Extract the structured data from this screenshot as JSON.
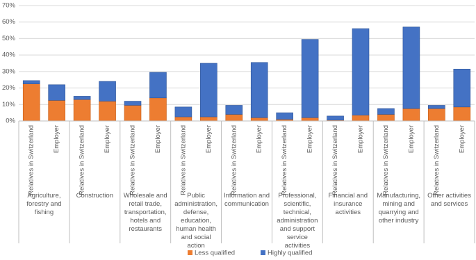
{
  "chart_data": {
    "type": "bar",
    "stacked": true,
    "groups": [
      "Agriculture, forestry and fishing",
      "Construction",
      "Wholesale and retail trade, transportation, hotels and restaurants",
      "Public administration, defense, education, human health and social action",
      "Information and communication",
      "Professional, scientific, technical, administration and support service activities",
      "Financial and insurance activities",
      "Manufacturing, mining and quarrying and other industry",
      "Other activities and services"
    ],
    "categories": [
      "Relatives in Switzerland",
      "Employer",
      "Relatives in Switzerland",
      "Employer",
      "Relatives in Switzerland",
      "Employer",
      "Relatives in Switzerland",
      "Employer",
      "Relatives in Switzerland",
      "Employer",
      "Relatives in Switzerland",
      "Employer",
      "Relatives in Switzerland",
      "Employer",
      "Relatives in Switzerland",
      "Employer",
      "Relatives in Switzerland",
      "Employer"
    ],
    "series": [
      {
        "name": "Less qualified",
        "color": "#ed7d31",
        "values": [
          22.5,
          12.5,
          13,
          12,
          9.5,
          14,
          2.5,
          2.5,
          4,
          2,
          1,
          2,
          0.5,
          3.5,
          4,
          7.5,
          7.5,
          8.5
        ]
      },
      {
        "name": "Highly qualified",
        "color": "#4472c4",
        "values": [
          2,
          9.5,
          2,
          12,
          2.5,
          15.5,
          6,
          32.5,
          5.5,
          33.5,
          4,
          47.5,
          2.5,
          52.5,
          3.5,
          49.5,
          2,
          23
        ]
      }
    ],
    "ylim": [
      0,
      70
    ],
    "yticks": [
      {
        "value": 0,
        "label": "0%"
      },
      {
        "value": 10,
        "label": "10%"
      },
      {
        "value": 20,
        "label": "20%"
      },
      {
        "value": 30,
        "label": "30%"
      },
      {
        "value": 40,
        "label": "40%"
      },
      {
        "value": 50,
        "label": "50%"
      },
      {
        "value": 60,
        "label": "60%"
      },
      {
        "value": 70,
        "label": "70%"
      }
    ],
    "grid": true,
    "legend": "bottom"
  }
}
